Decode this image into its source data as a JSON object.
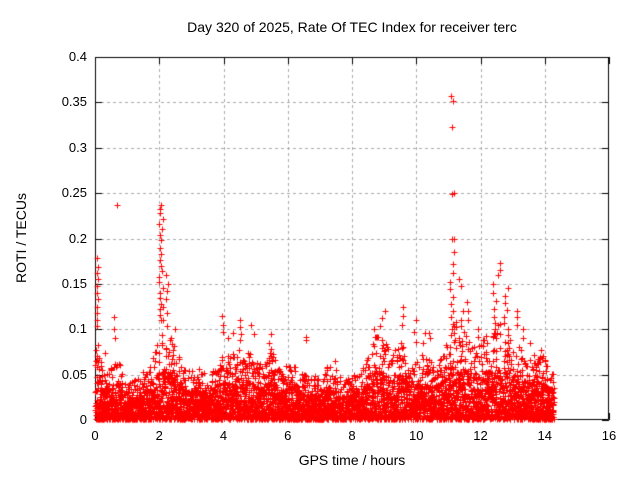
{
  "chart_data": {
    "type": "scatter",
    "title": "Day 320 of 2025, Rate Of TEC Index for receiver terc",
    "xlabel": "GPS time / hours",
    "ylabel": "ROTI / TECUs",
    "xlim": [
      0,
      16
    ],
    "ylim": [
      0,
      0.4
    ],
    "xticks": [
      {
        "v": 0,
        "label": "0"
      },
      {
        "v": 2,
        "label": "2"
      },
      {
        "v": 4,
        "label": "4"
      },
      {
        "v": 6,
        "label": "6"
      },
      {
        "v": 8,
        "label": "8"
      },
      {
        "v": 10,
        "label": "10"
      },
      {
        "v": 12,
        "label": "12"
      },
      {
        "v": 14,
        "label": "14"
      },
      {
        "v": 16,
        "label": "16"
      }
    ],
    "yticks": [
      {
        "v": 0,
        "label": "0"
      },
      {
        "v": 0.05,
        "label": "0.05"
      },
      {
        "v": 0.1,
        "label": "0.1"
      },
      {
        "v": 0.15,
        "label": "0.15"
      },
      {
        "v": 0.2,
        "label": "0.2"
      },
      {
        "v": 0.25,
        "label": "0.25"
      },
      {
        "v": 0.3,
        "label": "0.3"
      },
      {
        "v": 0.35,
        "label": "0.35"
      },
      {
        "v": 0.4,
        "label": "0.4"
      }
    ],
    "grid": "dashed-major-both-axes",
    "legend": "none",
    "marker": {
      "symbol": "plus",
      "color": "#ff0000",
      "size": 7
    },
    "colors": {
      "grid": "#aaaaaa",
      "border": "#000000",
      "background": "#ffffff"
    },
    "data_extent": {
      "x_start": 0,
      "x_end": 14.28
    },
    "baseline_envelope": {
      "comment": "approx max of dense point band per 0.25 h bin, ROTI/TECUs",
      "x_start": 0,
      "step": 0.25,
      "max_roti": [
        0.1,
        0.055,
        0.06,
        0.065,
        0.04,
        0.045,
        0.055,
        0.065,
        0.1,
        0.095,
        0.08,
        0.06,
        0.055,
        0.065,
        0.045,
        0.06,
        0.075,
        0.075,
        0.085,
        0.08,
        0.065,
        0.06,
        0.08,
        0.055,
        0.065,
        0.06,
        0.05,
        0.05,
        0.045,
        0.06,
        0.055,
        0.045,
        0.05,
        0.055,
        0.07,
        0.095,
        0.09,
        0.075,
        0.09,
        0.07,
        0.065,
        0.075,
        0.065,
        0.07,
        0.09,
        0.11,
        0.1,
        0.08,
        0.085,
        0.1,
        0.11,
        0.1,
        0.09,
        0.08,
        0.075,
        0.075,
        0.07,
        0.055
      ]
    },
    "spike_clusters": [
      {
        "x": 0.04,
        "dx": 0.05,
        "ys": [
          0.178,
          0.169,
          0.162,
          0.155,
          0.148,
          0.14,
          0.133,
          0.125,
          0.118,
          0.11,
          0.104
        ]
      },
      {
        "x": 0.3,
        "dx": 0.02,
        "ys": [
          0.074
        ]
      },
      {
        "x": 0.62,
        "dx": 0.05,
        "ys": [
          0.113,
          0.1,
          0.09
        ]
      },
      {
        "x": 2.06,
        "dx": 0.07,
        "ys": [
          0.237,
          0.233,
          0.228,
          0.222,
          0.216,
          0.21,
          0.204,
          0.198,
          0.19,
          0.183,
          0.176,
          0.17,
          0.164,
          0.158,
          0.152,
          0.146,
          0.14,
          0.134,
          0.128,
          0.122,
          0.116,
          0.11
        ]
      },
      {
        "x": 2.2,
        "dx": 0.12,
        "ys": [
          0.16,
          0.15,
          0.142,
          0.133,
          0.125,
          0.118,
          0.11,
          0.104
        ]
      },
      {
        "x": 2.45,
        "dx": 0.08,
        "ys": [
          0.1,
          0.09,
          0.082
        ]
      },
      {
        "x": 3.95,
        "dx": 0.05,
        "ys": [
          0.115,
          0.105,
          0.097
        ]
      },
      {
        "x": 4.15,
        "dx": 0.04,
        "ys": [
          0.09
        ]
      },
      {
        "x": 4.28,
        "dx": 0.03,
        "ys": [
          0.096
        ]
      },
      {
        "x": 4.5,
        "dx": 0.06,
        "ys": [
          0.11,
          0.102,
          0.095,
          0.088
        ]
      },
      {
        "x": 4.9,
        "dx": 0.05,
        "ys": [
          0.105,
          0.095
        ]
      },
      {
        "x": 5.45,
        "dx": 0.05,
        "ys": [
          0.095,
          0.085
        ]
      },
      {
        "x": 6.58,
        "dx": 0.03,
        "ys": [
          0.091,
          0.088
        ]
      },
      {
        "x": 7.45,
        "dx": 0.04,
        "ys": [
          0.065
        ]
      },
      {
        "x": 8.7,
        "dx": 0.06,
        "ys": [
          0.1,
          0.092
        ]
      },
      {
        "x": 8.95,
        "dx": 0.07,
        "ys": [
          0.12,
          0.112,
          0.104
        ]
      },
      {
        "x": 9.55,
        "dx": 0.05,
        "ys": [
          0.125,
          0.115,
          0.105
        ]
      },
      {
        "x": 9.95,
        "dx": 0.05,
        "ys": [
          0.11,
          0.097,
          0.086
        ]
      },
      {
        "x": 10.25,
        "dx": 0.04,
        "ys": [
          0.096,
          0.085
        ]
      },
      {
        "x": 10.4,
        "dx": 0.05,
        "ys": [
          0.096,
          0.09
        ]
      },
      {
        "x": 11.1,
        "dx": 0.08,
        "ys": [
          0.25,
          0.2,
          0.185,
          0.172,
          0.162,
          0.152,
          0.144,
          0.136,
          0.128,
          0.12,
          0.113,
          0.106,
          0.1
        ]
      },
      {
        "x": 11.4,
        "dx": 0.06,
        "ys": [
          0.155,
          0.148,
          0.12,
          0.11
        ]
      },
      {
        "x": 11.6,
        "dx": 0.06,
        "ys": [
          0.13,
          0.12,
          0.11
        ]
      },
      {
        "x": 11.9,
        "dx": 0.05,
        "ys": [
          0.1,
          0.092
        ]
      },
      {
        "x": 12.45,
        "dx": 0.09,
        "ys": [
          0.16,
          0.15,
          0.14,
          0.131,
          0.122,
          0.114,
          0.107,
          0.1
        ]
      },
      {
        "x": 12.6,
        "dx": 0.04,
        "ys": [
          0.173,
          0.165
        ]
      },
      {
        "x": 12.8,
        "dx": 0.09,
        "ys": [
          0.145,
          0.137,
          0.129,
          0.121,
          0.114,
          0.107,
          0.1
        ]
      },
      {
        "x": 13.1,
        "dx": 0.05,
        "ys": [
          0.12,
          0.113,
          0.105
        ]
      },
      {
        "x": 13.35,
        "dx": 0.04,
        "ys": [
          0.1,
          0.09
        ]
      },
      {
        "x": 13.55,
        "dx": 0.04,
        "ys": [
          0.085
        ]
      },
      {
        "x": 13.9,
        "dx": 0.06,
        "ys": [
          0.077,
          0.07
        ]
      }
    ],
    "outliers": [
      [
        0.68,
        0.237
      ],
      [
        11.08,
        0.357
      ],
      [
        11.13,
        0.352
      ],
      [
        11.1,
        0.323
      ],
      [
        11.1,
        0.249
      ],
      [
        11.12,
        0.199
      ]
    ]
  }
}
